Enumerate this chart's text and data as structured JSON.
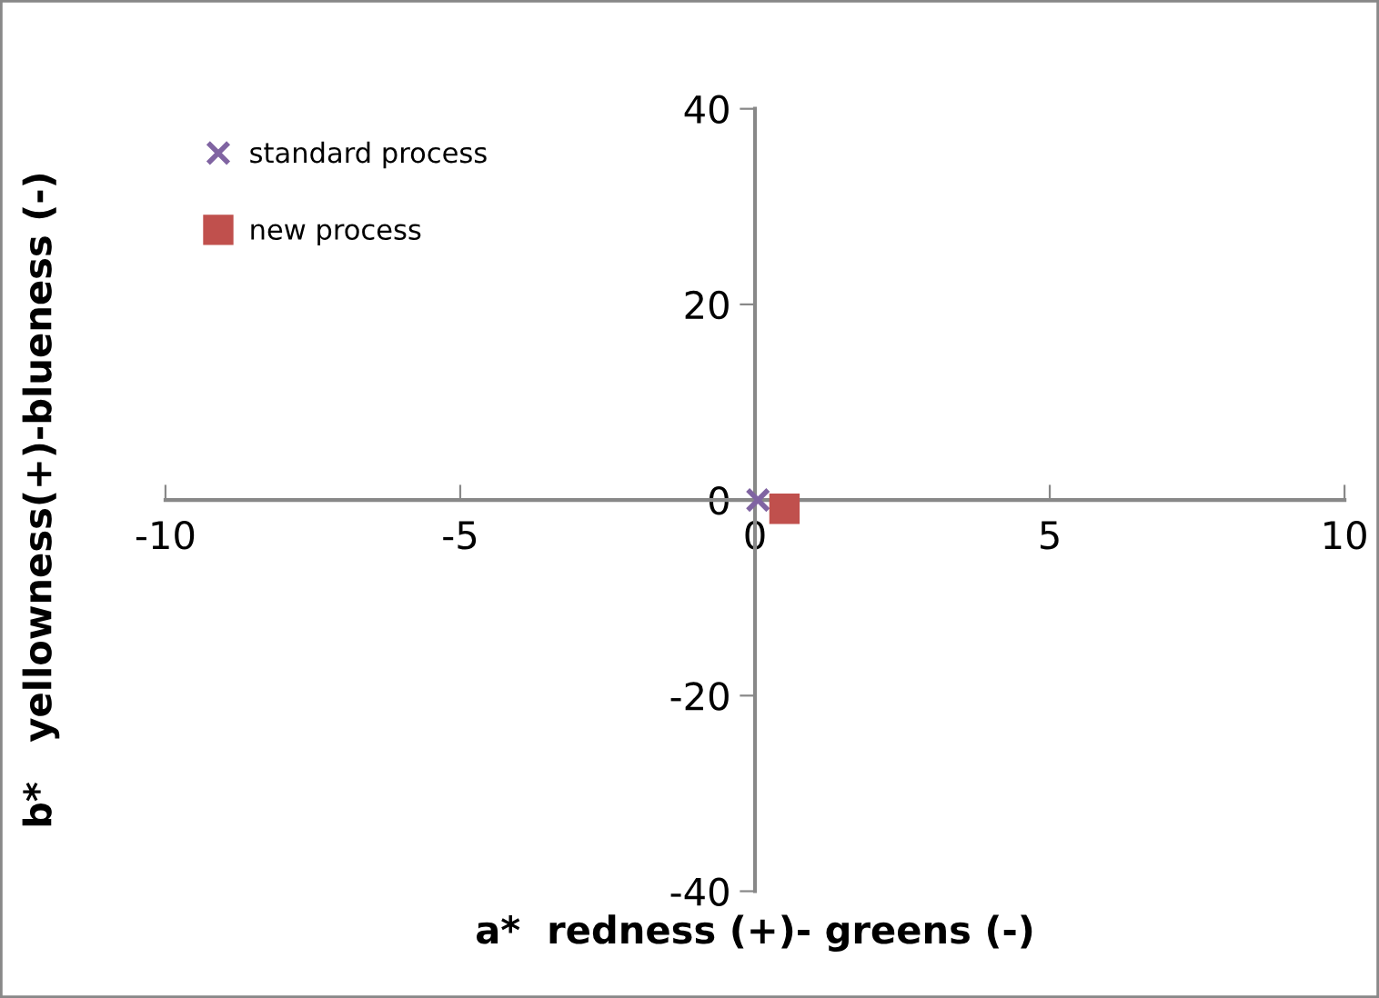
{
  "chart_data": {
    "type": "scatter",
    "xlabel": "a*  redness (+)- greens (-)",
    "ylabel": "b*   yellowness(+)-blueness (-)",
    "xlim": [
      -10,
      10
    ],
    "xticks": [
      -10,
      -5,
      0,
      5,
      10
    ],
    "ylim": [
      -40,
      40
    ],
    "yticks": [
      -40,
      -20,
      0,
      20,
      40
    ],
    "legend": "top left",
    "series": [
      {
        "name": "standard process",
        "color": "#8064a2",
        "marker": "cross",
        "x": [
          0.05
        ],
        "values": [
          0
        ]
      },
      {
        "name": "new process",
        "color": "#c0504d",
        "marker": "square",
        "x": [
          0.5
        ],
        "values": [
          -0.9
        ]
      }
    ]
  }
}
